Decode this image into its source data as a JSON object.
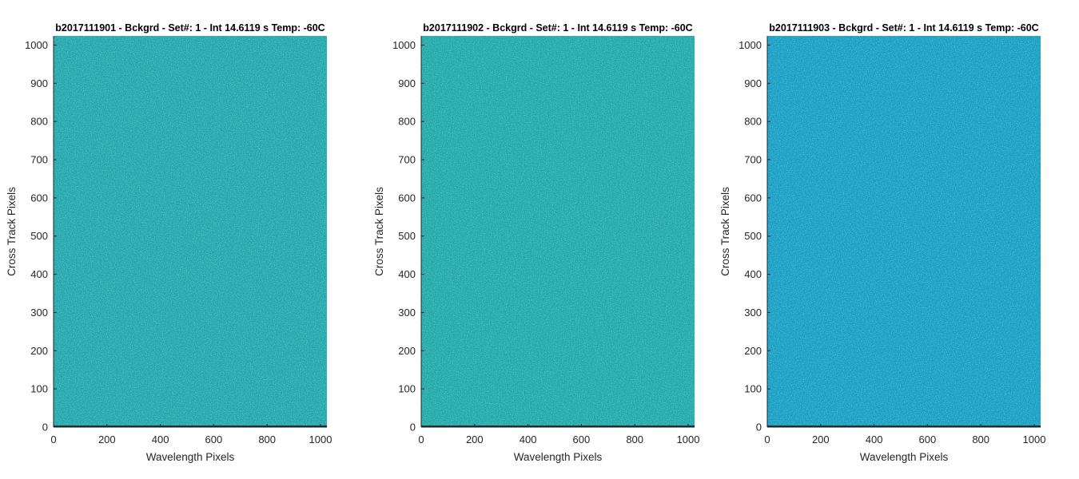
{
  "chart_data": [
    {
      "type": "heatmap",
      "title": "b2017111901 - Bckgrd - Set#: 1 - Int 14.6119 s Temp: -60C",
      "xlabel": "Wavelength Pixels",
      "ylabel": "Cross Track Pixels",
      "xlim": [
        0,
        1024
      ],
      "ylim": [
        0,
        1024
      ],
      "xticks": [
        0,
        200,
        400,
        600,
        800,
        1000
      ],
      "yticks": [
        0,
        100,
        200,
        300,
        400,
        500,
        600,
        700,
        800,
        900,
        1000
      ],
      "base_color": "#1fa7b1",
      "speckle_color": "#7ec78a",
      "bottom_row_color": "#12302e"
    },
    {
      "type": "heatmap",
      "title": "b2017111902 - Bckgrd - Set#: 1 - Int 14.6119 s Temp: -60C",
      "xlabel": "Wavelength Pixels",
      "ylabel": "Cross Track Pixels",
      "xlim": [
        0,
        1024
      ],
      "ylim": [
        0,
        1024
      ],
      "xticks": [
        0,
        200,
        400,
        600,
        800,
        1000
      ],
      "yticks": [
        0,
        100,
        200,
        300,
        400,
        500,
        600,
        700,
        800,
        900,
        1000
      ],
      "base_color": "#1ea8ae",
      "speckle_color": "#86c888",
      "bottom_row_color": "#12302e"
    },
    {
      "type": "heatmap",
      "title": "b2017111903 - Bckgrd - Set#: 1 - Int 14.6119 s Temp: -60C",
      "xlabel": "Wavelength Pixels",
      "ylabel": "Cross Track Pixels",
      "xlim": [
        0,
        1024
      ],
      "ylim": [
        0,
        1024
      ],
      "xticks": [
        0,
        200,
        400,
        600,
        800,
        1000
      ],
      "yticks": [
        0,
        100,
        200,
        300,
        400,
        500,
        600,
        700,
        800,
        900,
        1000
      ],
      "base_color": "#149ec8",
      "speckle_color": "#2fb0b8",
      "bottom_row_color": "#12302e"
    }
  ]
}
